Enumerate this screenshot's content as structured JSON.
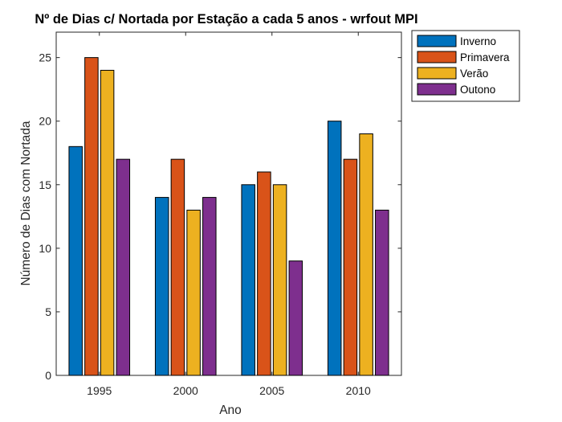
{
  "chart_data": {
    "type": "bar",
    "title": "Nº de Dias c/ Nortada por Estação a cada 5 anos - wrfout MPI",
    "xlabel": "Ano",
    "ylabel": "Número de Dias com Nortada",
    "categories": [
      "1995",
      "2000",
      "2005",
      "2010"
    ],
    "ylim": [
      0,
      27
    ],
    "yticks": [
      0,
      5,
      10,
      15,
      20,
      25
    ],
    "grid": false,
    "legend_position": "outside-top-right",
    "series": [
      {
        "name": "Inverno",
        "color": "#0072BD",
        "values": [
          18,
          14,
          15,
          20
        ]
      },
      {
        "name": "Primavera",
        "color": "#D95319",
        "values": [
          25,
          17,
          16,
          17
        ]
      },
      {
        "name": "Verão",
        "color": "#EDB120",
        "values": [
          24,
          13,
          15,
          19
        ]
      },
      {
        "name": "Outono",
        "color": "#7E2F8E",
        "values": [
          17,
          14,
          9,
          13
        ]
      }
    ]
  }
}
